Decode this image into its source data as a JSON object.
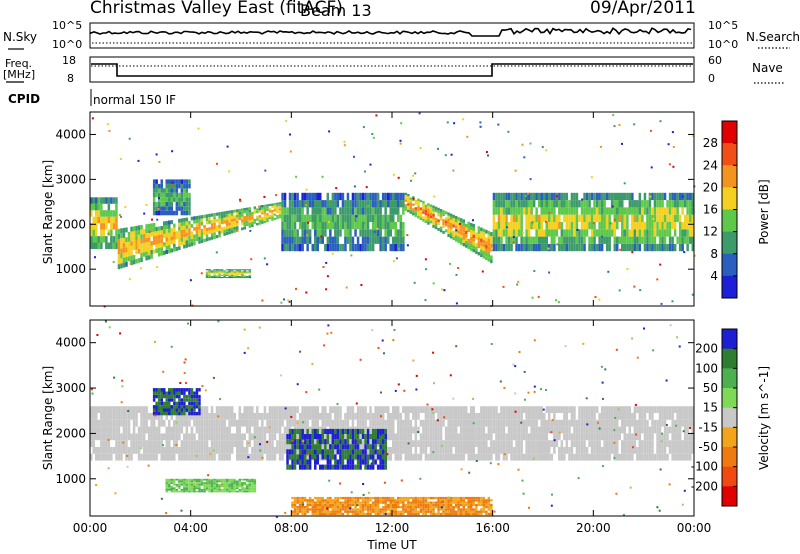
{
  "header": {
    "title": "Christmas Valley East (fitACF)",
    "beam": "Beam 13",
    "date": "09/Apr/2011"
  },
  "top_panels": {
    "nsky_label": "N.Sky",
    "nsky_tick_hi": "10^5",
    "nsky_tick_lo": "10^0",
    "nsearch_label": "N.Search",
    "nsearch_tick_hi": "10^5",
    "nsearch_tick_lo": "10^0",
    "freq_label_1": "Freq.",
    "freq_label_2": "[MHz]",
    "freq_tick_hi": "18",
    "freq_tick_lo": "8",
    "nave_label": "Nave",
    "nave_tick_hi": "60",
    "nave_tick_lo": "0",
    "cpid_label": "CPID",
    "cpid_value": "normal 150 IF"
  },
  "chart_data": [
    {
      "type": "heatmap",
      "title": "Power",
      "ylabel": "Slant Range [km]",
      "xlabel": "Time UT",
      "x_ticks": [
        "00:00",
        "04:00",
        "08:00",
        "12:00",
        "16:00",
        "20:00",
        "00:00"
      ],
      "xlim": [
        0,
        24
      ],
      "ylim": [
        180,
        4500
      ],
      "y_ticks": [
        1000,
        2000,
        3000,
        4000
      ],
      "colorbar_label": "Power [dB]",
      "colorbar_ticks": [
        4,
        8,
        12,
        16,
        20,
        24,
        28
      ],
      "colorbar_range": [
        0,
        32
      ],
      "colors": [
        "#1f1fd8",
        "#2a5fbf",
        "#3d9a6a",
        "#5ec84a",
        "#f4d020",
        "#f49420",
        "#f05018",
        "#e00000"
      ],
      "features": [
        {
          "t0": 0.0,
          "t1": 1.1,
          "r0": 1450,
          "r1": 2600,
          "power": 22
        },
        {
          "t0": 1.1,
          "t1": 7.6,
          "r0_start": 1000,
          "r0_end": 2150,
          "r1_start": 1900,
          "r1_end": 2500,
          "power": 24
        },
        {
          "t0": 2.5,
          "t1": 4.0,
          "r0": 2200,
          "r1": 3000,
          "power": 14
        },
        {
          "t0": 4.6,
          "t1": 6.4,
          "r0": 800,
          "r1": 1000,
          "power": 20
        },
        {
          "t0": 7.6,
          "t1": 12.5,
          "r0": 1400,
          "r1": 2700,
          "power": 14
        },
        {
          "t0": 12.5,
          "t1": 16.0,
          "r0_start": 2300,
          "r0_end": 1100,
          "r1_start": 2700,
          "r1_end": 1800,
          "power": 26
        },
        {
          "t0": 16.0,
          "t1": 24.0,
          "r0": 1400,
          "r1": 2700,
          "power": 20
        }
      ]
    },
    {
      "type": "heatmap",
      "title": "Velocity",
      "ylabel": "Slant Range [km]",
      "xlabel": "Time UT",
      "x_ticks": [
        "00:00",
        "04:00",
        "08:00",
        "12:00",
        "16:00",
        "20:00",
        "00:00"
      ],
      "xlim": [
        0,
        24
      ],
      "ylim": [
        180,
        4500
      ],
      "y_ticks": [
        1000,
        2000,
        3000,
        4000
      ],
      "colorbar_label": "Velocity [m s^-1]",
      "colorbar_ticks": [
        200,
        100,
        50,
        15,
        -15,
        -50,
        -100,
        -200
      ],
      "colors": [
        "#1e1ed2",
        "#2e7d32",
        "#4caf50",
        "#7ed957",
        "#c8c8c8",
        "#f2a51a",
        "#ee7a10",
        "#f04a10",
        "#e00000"
      ],
      "features": [
        {
          "t0": 0.0,
          "t1": 24.0,
          "r0": 1400,
          "r1": 2600,
          "velocity": 0
        },
        {
          "t0": 2.5,
          "t1": 4.4,
          "r0": 2400,
          "r1": 3000,
          "velocity": 200
        },
        {
          "t0": 7.8,
          "t1": 11.8,
          "r0": 1200,
          "r1": 2100,
          "velocity": 200
        },
        {
          "t0": 3.0,
          "t1": 6.6,
          "r0": 700,
          "r1": 1000,
          "velocity": 50
        },
        {
          "t0": 8.0,
          "t1": 16.0,
          "r0": 200,
          "r1": 600,
          "velocity": -50
        }
      ]
    }
  ]
}
